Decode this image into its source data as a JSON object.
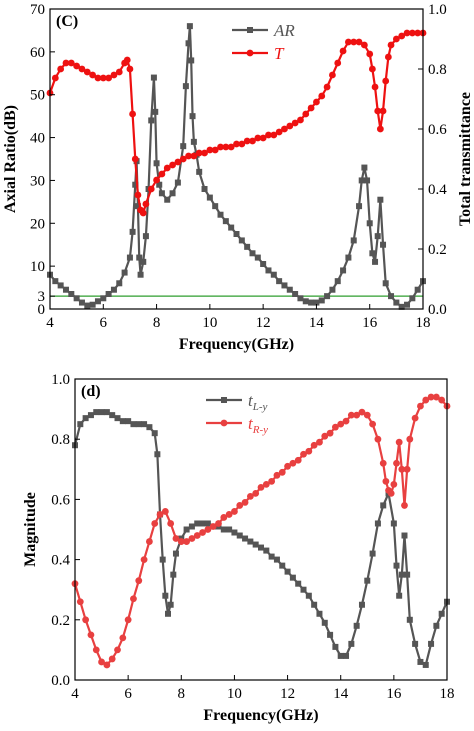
{
  "chart_data": [
    {
      "type": "line",
      "panel_label": "(C)",
      "xlabel": "Frequency(GHz)",
      "ylabel": "Axial Ratio(dB)",
      "y2label": "Total transmittance",
      "xlim": [
        4,
        18
      ],
      "ylim": [
        0,
        70
      ],
      "y2lim": [
        0,
        1.0
      ],
      "xticks": [
        "4",
        "6",
        "8",
        "10",
        "12",
        "14",
        "16",
        "18"
      ],
      "yticks": [
        "0",
        "3",
        "10",
        "20",
        "30",
        "40",
        "50",
        "60",
        "70"
      ],
      "y2ticks": [
        "0.0",
        "0.2",
        "0.4",
        "0.6",
        "0.8",
        "1.0"
      ],
      "reference_line": {
        "y": 3,
        "color": "#2e9e2e"
      },
      "legend_position": "top-center",
      "series": [
        {
          "name": "AR",
          "axis": "left",
          "color": "#555555",
          "marker": "square",
          "x": [
            4.0,
            4.2,
            4.4,
            4.6,
            4.8,
            5.0,
            5.2,
            5.4,
            5.6,
            5.8,
            6.0,
            6.2,
            6.4,
            6.6,
            6.8,
            7.0,
            7.1,
            7.2,
            7.25,
            7.3,
            7.35,
            7.4,
            7.5,
            7.6,
            7.7,
            7.8,
            7.9,
            7.95,
            8.0,
            8.1,
            8.2,
            8.4,
            8.6,
            8.8,
            9.0,
            9.1,
            9.2,
            9.25,
            9.3,
            9.35,
            9.4,
            9.5,
            9.6,
            9.8,
            10.0,
            10.2,
            10.4,
            10.6,
            10.8,
            11.0,
            11.2,
            11.4,
            11.6,
            11.8,
            12.0,
            12.2,
            12.4,
            12.6,
            12.8,
            13.0,
            13.2,
            13.4,
            13.6,
            13.8,
            14.0,
            14.2,
            14.4,
            14.6,
            14.8,
            15.0,
            15.2,
            15.4,
            15.6,
            15.7,
            15.8,
            15.9,
            16.0,
            16.1,
            16.2,
            16.3,
            16.4,
            16.5,
            16.6,
            16.8,
            17.0,
            17.2,
            17.4,
            17.6,
            17.8,
            18.0
          ],
          "y": [
            8.0,
            6.5,
            5.5,
            4.5,
            3.5,
            2.5,
            1.5,
            0.8,
            1.0,
            1.8,
            2.5,
            3.5,
            4.5,
            6.0,
            8.5,
            12.0,
            18.0,
            29.0,
            34.5,
            24.0,
            12.0,
            8.0,
            11.0,
            17.0,
            28.0,
            44.0,
            54.0,
            46.0,
            34.0,
            29.0,
            27.0,
            25.5,
            27.0,
            29.5,
            38.0,
            52.0,
            62.0,
            66.0,
            58.0,
            45.0,
            39.0,
            36.0,
            32.0,
            28.0,
            26.0,
            24.0,
            22.0,
            20.5,
            19.0,
            17.5,
            16.0,
            14.5,
            13.0,
            12.0,
            10.5,
            9.0,
            8.0,
            6.5,
            5.5,
            4.5,
            3.5,
            2.5,
            1.8,
            1.5,
            1.5,
            2.0,
            3.0,
            4.5,
            6.5,
            9.0,
            12.0,
            16.0,
            24.0,
            30.0,
            33.0,
            30.0,
            20.0,
            13.0,
            11.0,
            17.0,
            25.5,
            15.0,
            6.0,
            3.0,
            1.5,
            0.5,
            1.0,
            2.5,
            4.5,
            6.5
          ]
        },
        {
          "name": "T",
          "axis": "right",
          "color": "#ee1111",
          "marker": "circle",
          "x": [
            4.0,
            4.2,
            4.4,
            4.6,
            4.8,
            5.0,
            5.2,
            5.4,
            5.6,
            5.8,
            6.0,
            6.2,
            6.4,
            6.6,
            6.8,
            6.9,
            7.0,
            7.1,
            7.2,
            7.3,
            7.4,
            7.5,
            7.6,
            7.8,
            8.0,
            8.2,
            8.4,
            8.6,
            8.8,
            9.0,
            9.2,
            9.4,
            9.6,
            9.8,
            10.0,
            10.2,
            10.4,
            10.6,
            10.8,
            11.0,
            11.2,
            11.4,
            11.6,
            11.8,
            12.0,
            12.2,
            12.4,
            12.6,
            12.8,
            13.0,
            13.2,
            13.4,
            13.6,
            13.8,
            14.0,
            14.2,
            14.4,
            14.6,
            14.8,
            15.0,
            15.2,
            15.4,
            15.6,
            15.8,
            16.0,
            16.1,
            16.2,
            16.3,
            16.4,
            16.5,
            16.6,
            16.7,
            16.8,
            17.0,
            17.2,
            17.4,
            17.6,
            17.8,
            18.0
          ],
          "y": [
            0.72,
            0.77,
            0.8,
            0.82,
            0.82,
            0.81,
            0.8,
            0.79,
            0.78,
            0.77,
            0.77,
            0.77,
            0.78,
            0.79,
            0.82,
            0.83,
            0.8,
            0.65,
            0.5,
            0.38,
            0.33,
            0.32,
            0.35,
            0.4,
            0.43,
            0.45,
            0.47,
            0.48,
            0.49,
            0.5,
            0.51,
            0.51,
            0.52,
            0.52,
            0.53,
            0.53,
            0.54,
            0.54,
            0.54,
            0.55,
            0.55,
            0.56,
            0.56,
            0.57,
            0.57,
            0.58,
            0.58,
            0.59,
            0.6,
            0.61,
            0.62,
            0.63,
            0.65,
            0.67,
            0.69,
            0.71,
            0.74,
            0.78,
            0.82,
            0.86,
            0.89,
            0.89,
            0.89,
            0.88,
            0.85,
            0.8,
            0.74,
            0.66,
            0.6,
            0.66,
            0.76,
            0.84,
            0.88,
            0.9,
            0.91,
            0.92,
            0.92,
            0.92,
            0.92
          ]
        }
      ]
    },
    {
      "type": "line",
      "panel_label": "(d)",
      "xlabel": "Frequency(GHz)",
      "ylabel": "Magnitude",
      "xlim": [
        4,
        18
      ],
      "ylim": [
        0.0,
        1.0
      ],
      "xticks": [
        "4",
        "6",
        "8",
        "10",
        "12",
        "14",
        "16",
        "18"
      ],
      "yticks": [
        "0.0",
        "0.2",
        "0.4",
        "0.6",
        "0.8",
        "1.0"
      ],
      "legend_position": "top-center",
      "series": [
        {
          "name": "t",
          "name_sub": "L-y",
          "color": "#555555",
          "marker": "square",
          "x": [
            4.0,
            4.2,
            4.4,
            4.6,
            4.8,
            5.0,
            5.2,
            5.4,
            5.6,
            5.8,
            6.0,
            6.2,
            6.4,
            6.6,
            6.8,
            7.0,
            7.1,
            7.2,
            7.3,
            7.4,
            7.5,
            7.6,
            7.7,
            7.8,
            8.0,
            8.2,
            8.4,
            8.6,
            8.8,
            9.0,
            9.2,
            9.4,
            9.6,
            9.8,
            10.0,
            10.2,
            10.4,
            10.6,
            10.8,
            11.0,
            11.2,
            11.4,
            11.6,
            11.8,
            12.0,
            12.2,
            12.4,
            12.6,
            12.8,
            13.0,
            13.2,
            13.4,
            13.6,
            13.8,
            14.0,
            14.2,
            14.4,
            14.6,
            14.8,
            15.0,
            15.2,
            15.4,
            15.6,
            15.8,
            16.0,
            16.1,
            16.2,
            16.3,
            16.4,
            16.5,
            16.6,
            16.8,
            17.0,
            17.2,
            17.4,
            17.6,
            17.8,
            18.0
          ],
          "y": [
            0.78,
            0.85,
            0.87,
            0.88,
            0.89,
            0.89,
            0.89,
            0.88,
            0.87,
            0.86,
            0.86,
            0.85,
            0.85,
            0.85,
            0.84,
            0.82,
            0.75,
            0.55,
            0.4,
            0.28,
            0.22,
            0.25,
            0.35,
            0.42,
            0.47,
            0.5,
            0.51,
            0.52,
            0.52,
            0.52,
            0.51,
            0.51,
            0.5,
            0.5,
            0.49,
            0.48,
            0.47,
            0.46,
            0.45,
            0.44,
            0.43,
            0.41,
            0.4,
            0.38,
            0.36,
            0.34,
            0.32,
            0.3,
            0.28,
            0.25,
            0.22,
            0.19,
            0.15,
            0.11,
            0.08,
            0.08,
            0.12,
            0.18,
            0.25,
            0.33,
            0.42,
            0.52,
            0.58,
            0.62,
            0.52,
            0.38,
            0.28,
            0.35,
            0.48,
            0.35,
            0.2,
            0.12,
            0.06,
            0.05,
            0.12,
            0.18,
            0.22,
            0.26
          ]
        },
        {
          "name": "t",
          "name_sub": "R-y",
          "color": "#e84040",
          "marker": "circle",
          "x": [
            4.0,
            4.2,
            4.4,
            4.6,
            4.8,
            5.0,
            5.2,
            5.4,
            5.6,
            5.8,
            6.0,
            6.2,
            6.4,
            6.6,
            6.8,
            7.0,
            7.2,
            7.4,
            7.6,
            7.8,
            8.0,
            8.2,
            8.4,
            8.6,
            8.8,
            9.0,
            9.2,
            9.4,
            9.6,
            9.8,
            10.0,
            10.2,
            10.4,
            10.6,
            10.8,
            11.0,
            11.2,
            11.4,
            11.6,
            11.8,
            12.0,
            12.2,
            12.4,
            12.6,
            12.8,
            13.0,
            13.2,
            13.4,
            13.6,
            13.8,
            14.0,
            14.2,
            14.4,
            14.6,
            14.8,
            15.0,
            15.2,
            15.4,
            15.6,
            15.7,
            15.8,
            15.9,
            16.0,
            16.1,
            16.2,
            16.3,
            16.4,
            16.5,
            16.6,
            16.8,
            17.0,
            17.2,
            17.4,
            17.6,
            17.8,
            18.0
          ],
          "y": [
            0.32,
            0.26,
            0.2,
            0.15,
            0.1,
            0.06,
            0.05,
            0.07,
            0.1,
            0.14,
            0.2,
            0.27,
            0.33,
            0.4,
            0.46,
            0.52,
            0.55,
            0.56,
            0.52,
            0.47,
            0.46,
            0.46,
            0.47,
            0.48,
            0.49,
            0.5,
            0.51,
            0.52,
            0.54,
            0.55,
            0.56,
            0.58,
            0.59,
            0.61,
            0.62,
            0.64,
            0.65,
            0.66,
            0.68,
            0.69,
            0.71,
            0.72,
            0.73,
            0.75,
            0.76,
            0.78,
            0.79,
            0.81,
            0.82,
            0.84,
            0.85,
            0.86,
            0.88,
            0.88,
            0.89,
            0.88,
            0.85,
            0.8,
            0.72,
            0.66,
            0.63,
            0.62,
            0.65,
            0.72,
            0.79,
            0.7,
            0.58,
            0.7,
            0.8,
            0.87,
            0.91,
            0.93,
            0.94,
            0.94,
            0.93,
            0.91
          ]
        }
      ]
    }
  ]
}
